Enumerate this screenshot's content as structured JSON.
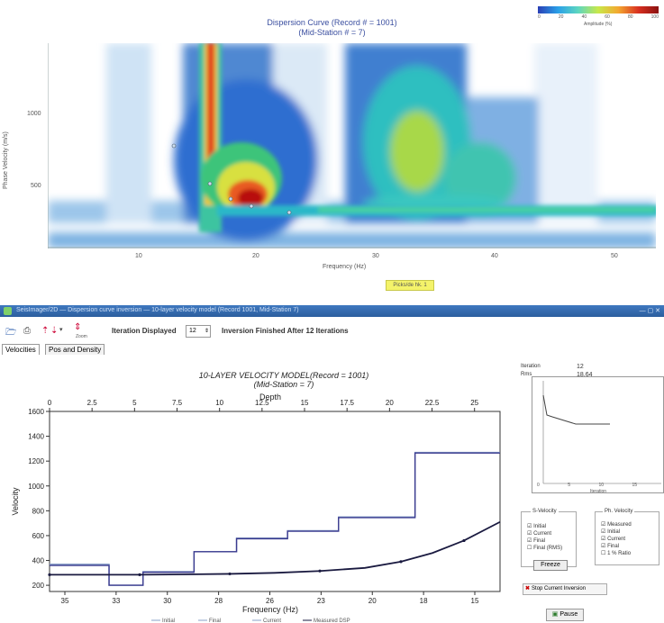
{
  "top_chart": {
    "title": "Dispersion Curve (Record # = 1001)",
    "subtitle": "(Mid-Station # = 7)",
    "ylabel": "Phase Velocity (m/s)",
    "xlabel": "Frequency (Hz)",
    "xticks": [
      "10",
      "20",
      "30",
      "40",
      "50"
    ],
    "yticks": [
      "1000",
      "500"
    ],
    "colorbar_ticks": [
      "0",
      "20",
      "40",
      "60",
      "80",
      "100"
    ],
    "colorbar_label": "Amplitude (%)",
    "pick_toggle": "Picks/de hk. 1"
  },
  "window": {
    "title": "SeisImager/2D — Dispersion curve inversion — 10-layer velocity model (Record 1001, Mid-Station 7)"
  },
  "toolbar": {
    "iteration_label": "Iteration Displayed",
    "iteration_value": "12",
    "status": "Inversion Finished After 12 Iterations",
    "zoom_label": "Zoom"
  },
  "tabs": [
    {
      "label": "Velocities"
    },
    {
      "label": "Pos and Density"
    }
  ],
  "chart_data": {
    "type": "line",
    "title": "10-LAYER VELOCITY MODEL(Record = 1001)",
    "subtitle": "(Mid-Station = 7)",
    "top_axis_label": "Depth",
    "top_ticks": [
      "0",
      "2.5",
      "5",
      "7.5",
      "10",
      "12.5",
      "15",
      "17.5",
      "20",
      "22.5",
      "25"
    ],
    "xlabel": "Frequency (Hz)",
    "bottom_ticks": [
      "35",
      "33",
      "30",
      "28",
      "26",
      "23",
      "20",
      "18",
      "15"
    ],
    "ylabel": "Velocity",
    "yticks": [
      "1600",
      "1400",
      "1200",
      "1000",
      "800",
      "600",
      "400",
      "200"
    ],
    "ylim": [
      150,
      1600
    ],
    "depth_range": [
      0,
      26.5
    ],
    "series": [
      {
        "name": "Initial",
        "color": "#8aa0c8",
        "depth_steps": [
          [
            0,
            370
          ],
          [
            3.5,
            370
          ],
          [
            3.5,
            200
          ],
          [
            5.5,
            200
          ],
          [
            5.5,
            310
          ],
          [
            8.5,
            310
          ],
          [
            8.5,
            470
          ],
          [
            11,
            470
          ],
          [
            11,
            580
          ],
          [
            14,
            580
          ],
          [
            14,
            640
          ],
          [
            17,
            640
          ],
          [
            17,
            750
          ],
          [
            21.5,
            750
          ],
          [
            21.5,
            1270
          ],
          [
            26.5,
            1270
          ]
        ]
      },
      {
        "name": "Final",
        "color": "#3b3b8f",
        "depth_steps": [
          [
            0,
            360
          ],
          [
            3.5,
            360
          ],
          [
            3.5,
            200
          ],
          [
            5.5,
            200
          ],
          [
            5.5,
            305
          ],
          [
            8.5,
            305
          ],
          [
            8.5,
            470
          ],
          [
            11,
            470
          ],
          [
            11,
            575
          ],
          [
            14,
            575
          ],
          [
            14,
            635
          ],
          [
            17,
            635
          ],
          [
            17,
            745
          ],
          [
            21.5,
            745
          ],
          [
            21.5,
            1265
          ],
          [
            26.5,
            1265
          ]
        ]
      },
      {
        "name": "Measured DSP",
        "color": "#1a1a40",
        "freq_fraction_points": [
          [
            0,
            285
          ],
          [
            0.1,
            285
          ],
          [
            0.2,
            285
          ],
          [
            0.3,
            288
          ],
          [
            0.4,
            292
          ],
          [
            0.5,
            300
          ],
          [
            0.6,
            315
          ],
          [
            0.7,
            340
          ],
          [
            0.78,
            390
          ],
          [
            0.85,
            460
          ],
          [
            0.92,
            560
          ],
          [
            1.0,
            710
          ]
        ]
      }
    ],
    "legend": [
      "Initial",
      "Final",
      "Current",
      "Measured DSP"
    ]
  },
  "side_panel": {
    "iteration_label": "Iteration",
    "iteration_value": "12",
    "rms_label": "Rms",
    "rms_value": "18.64",
    "mini_xlabel": "Iteration",
    "mini_xticks": [
      "0",
      "5",
      "10",
      "15",
      "20"
    ],
    "velocity_group": {
      "title": "S-Velocity",
      "items": [
        "Initial",
        "Current",
        "Final",
        "Final (RMS)"
      ]
    },
    "phase_group": {
      "title": "Ph. Velocity",
      "items": [
        "Measured",
        "Initial",
        "Current",
        "Final",
        "1 % Ratio"
      ]
    },
    "freeze_button": "Freeze",
    "stop_button": "Stop Current Inversion",
    "pause_button": "Pause"
  }
}
